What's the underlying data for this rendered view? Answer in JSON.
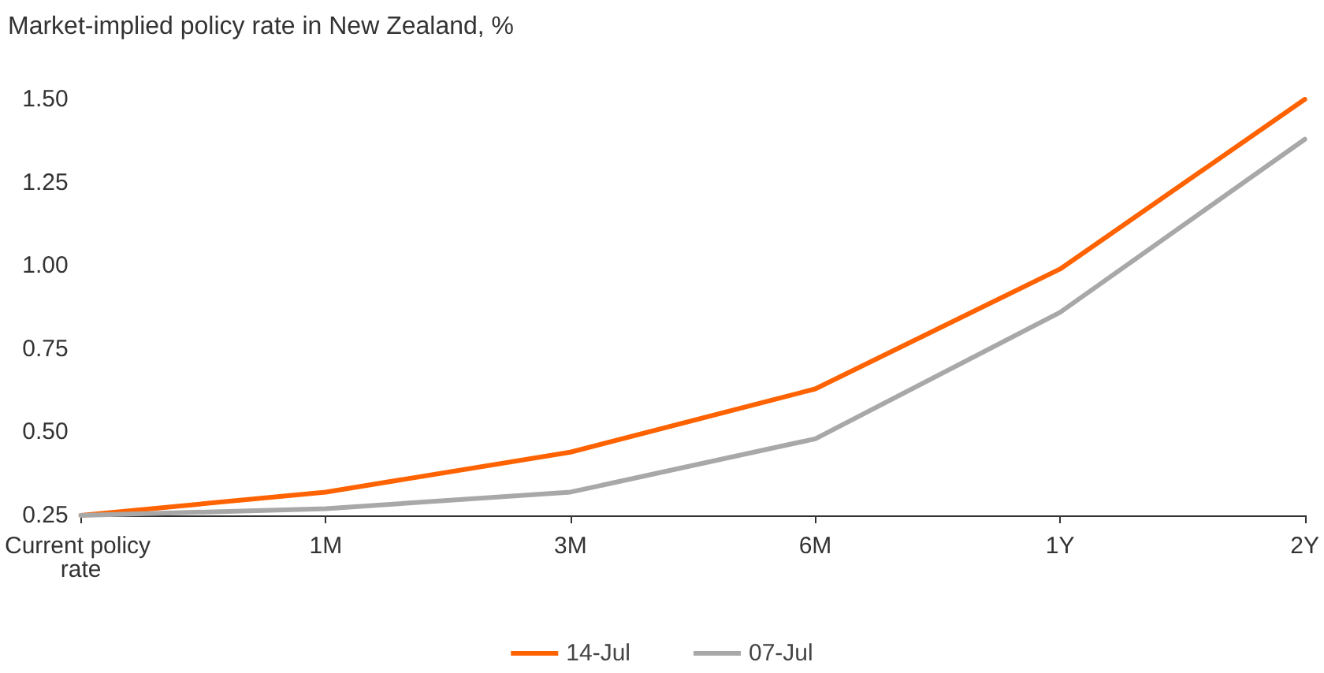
{
  "chart_data": {
    "type": "line",
    "title": "Market-implied policy rate in New Zealand, %",
    "categories": [
      "Current policy rate",
      "1M",
      "3M",
      "6M",
      "1Y",
      "2Y"
    ],
    "series": [
      {
        "name": "14-Jul",
        "color": "#ff6200",
        "values": [
          0.25,
          0.32,
          0.44,
          0.63,
          0.99,
          1.5
        ]
      },
      {
        "name": "07-Jul",
        "color": "#a8a8a8",
        "values": [
          0.25,
          0.27,
          0.32,
          0.48,
          0.86,
          1.38
        ]
      }
    ],
    "ylim": [
      0.25,
      1.5
    ],
    "yticks": [
      0.25,
      {
        "value": 0.5,
        "label": "0.50"
      },
      0.75,
      {
        "value": 1,
        "label": "1.00"
      },
      1.25,
      {
        "value": 1.5,
        "label": "1.50"
      }
    ],
    "grid": false,
    "legend": "bottom",
    "marker": "none",
    "line_style": "solid"
  }
}
